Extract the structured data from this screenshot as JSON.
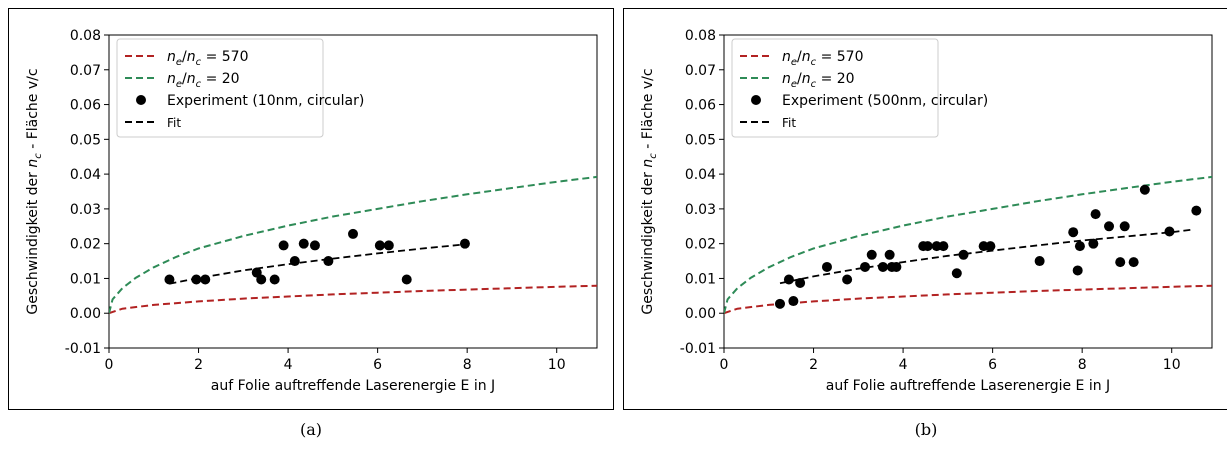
{
  "colors": {
    "red": "#b22222",
    "green": "#2e8b57",
    "black": "#000000"
  },
  "chart_data": [
    {
      "type": "line",
      "panel": "a",
      "caption": "(a)",
      "xlabel": "auf Folie auftreffende Laserenergie E in J",
      "ylabel": "Geschwindigkeit der n_c - Fläche v/c",
      "xlim": [
        0,
        10.9
      ],
      "ylim": [
        -0.01,
        0.08
      ],
      "xticks": [
        0,
        2,
        4,
        6,
        8,
        10
      ],
      "xtick_labels": [
        "0",
        "2",
        "4",
        "6",
        "8",
        "10"
      ],
      "yticks": [
        -0.01,
        0,
        0.01,
        0.02,
        0.03,
        0.04,
        0.05,
        0.06,
        0.07,
        0.08
      ],
      "ytick_labels": [
        "-0.01",
        "0.00",
        "0.01",
        "0.02",
        "0.03",
        "0.04",
        "0.05",
        "0.06",
        "0.07",
        "0.08"
      ],
      "grid": false,
      "legend_position": "top-left",
      "legend": [
        {
          "math": true,
          "text": "n_e/n_c = 570",
          "ratio": "570",
          "style": "dashed-red"
        },
        {
          "math": true,
          "text": "n_e/n_c = 20",
          "ratio": "20",
          "style": "dashed-green"
        },
        {
          "math": false,
          "text": "Experiment (10nm, circular)",
          "style": "marker"
        },
        {
          "math": false,
          "text": "Fit",
          "style": "dashed-black"
        }
      ],
      "series": [
        {
          "name": "n_e/n_c = 570",
          "style": "dashed-red",
          "x": [
            0,
            0.3,
            1,
            2,
            3,
            4,
            5,
            6,
            7,
            8,
            9,
            10,
            10.9
          ],
          "y": [
            0,
            0.0013,
            0.0024,
            0.0034,
            0.0042,
            0.0048,
            0.0054,
            0.0059,
            0.0064,
            0.0068,
            0.0072,
            0.0076,
            0.0079
          ]
        },
        {
          "name": "n_e/n_c = 20",
          "style": "dashed-green",
          "x": [
            0,
            0.08,
            0.3,
            0.6,
            1,
            1.5,
            2,
            3,
            4,
            5,
            6,
            7,
            8,
            9,
            10,
            10.9
          ],
          "y": [
            0,
            0.004,
            0.0072,
            0.0102,
            0.0132,
            0.0162,
            0.0186,
            0.0222,
            0.0252,
            0.0278,
            0.03,
            0.0322,
            0.0342,
            0.036,
            0.0378,
            0.0392
          ]
        },
        {
          "name": "Experiment (10nm, circular)",
          "style": "marker",
          "x": [
            1.35,
            1.95,
            2.15,
            3.3,
            3.4,
            3.7,
            3.9,
            4.15,
            4.35,
            4.6,
            4.9,
            5.45,
            6.05,
            6.25,
            6.65,
            7.95
          ],
          "y": [
            0.0097,
            0.0097,
            0.0097,
            0.0117,
            0.0097,
            0.0097,
            0.0195,
            0.015,
            0.02,
            0.0195,
            0.015,
            0.0228,
            0.0195,
            0.0195,
            0.0097,
            0.02
          ]
        },
        {
          "name": "Fit",
          "style": "dashed-black",
          "x": [
            1.35,
            2,
            3,
            4,
            5,
            6,
            7,
            7.95
          ],
          "y": [
            0.0085,
            0.0101,
            0.0123,
            0.0141,
            0.0157,
            0.0172,
            0.0186,
            0.0198
          ]
        }
      ]
    },
    {
      "type": "line",
      "panel": "b",
      "caption": "(b)",
      "xlabel": "auf Folie auftreffende Laserenergie E in J",
      "ylabel": "Geschwindigkeit der n_c - Fläche v/c",
      "xlim": [
        0,
        10.9
      ],
      "ylim": [
        -0.01,
        0.08
      ],
      "xticks": [
        0,
        2,
        4,
        6,
        8,
        10
      ],
      "xtick_labels": [
        "0",
        "2",
        "4",
        "6",
        "8",
        "10"
      ],
      "yticks": [
        -0.01,
        0,
        0.01,
        0.02,
        0.03,
        0.04,
        0.05,
        0.06,
        0.07,
        0.08
      ],
      "ytick_labels": [
        "-0.01",
        "0.00",
        "0.01",
        "0.02",
        "0.03",
        "0.04",
        "0.05",
        "0.06",
        "0.07",
        "0.08"
      ],
      "grid": false,
      "legend_position": "top-left",
      "legend": [
        {
          "math": true,
          "text": "n_e/n_c = 570",
          "ratio": "570",
          "style": "dashed-red"
        },
        {
          "math": true,
          "text": "n_e/n_c = 20",
          "ratio": "20",
          "style": "dashed-green"
        },
        {
          "math": false,
          "text": "Experiment (500nm, circular)",
          "style": "marker"
        },
        {
          "math": false,
          "text": "Fit",
          "style": "dashed-black"
        }
      ],
      "series": [
        {
          "name": "n_e/n_c = 570",
          "style": "dashed-red",
          "x": [
            0,
            0.3,
            1,
            2,
            3,
            4,
            5,
            6,
            7,
            8,
            9,
            10,
            10.9
          ],
          "y": [
            0,
            0.0013,
            0.0024,
            0.0034,
            0.0042,
            0.0048,
            0.0054,
            0.0059,
            0.0064,
            0.0068,
            0.0072,
            0.0076,
            0.0079
          ]
        },
        {
          "name": "n_e/n_c = 20",
          "style": "dashed-green",
          "x": [
            0,
            0.08,
            0.3,
            0.6,
            1,
            1.5,
            2,
            3,
            4,
            5,
            6,
            7,
            8,
            9,
            10,
            10.9
          ],
          "y": [
            0,
            0.004,
            0.0072,
            0.0102,
            0.0132,
            0.0162,
            0.0186,
            0.0222,
            0.0252,
            0.0278,
            0.03,
            0.0322,
            0.0342,
            0.036,
            0.0378,
            0.0392
          ]
        },
        {
          "name": "Experiment (500nm, circular)",
          "style": "marker",
          "x": [
            1.25,
            1.45,
            1.55,
            1.7,
            2.3,
            2.75,
            3.15,
            3.3,
            3.55,
            3.7,
            3.75,
            3.85,
            4.45,
            4.55,
            4.75,
            4.9,
            5.2,
            5.35,
            5.8,
            5.95,
            7.05,
            7.8,
            7.9,
            7.95,
            8.25,
            8.3,
            8.6,
            8.85,
            8.95,
            9.15,
            9.4,
            9.95,
            10.55
          ],
          "y": [
            0.0027,
            0.0097,
            0.0035,
            0.0087,
            0.0133,
            0.0097,
            0.0133,
            0.0168,
            0.0133,
            0.0168,
            0.0133,
            0.0133,
            0.0193,
            0.0193,
            0.0193,
            0.0193,
            0.0115,
            0.0168,
            0.0193,
            0.0193,
            0.015,
            0.0233,
            0.0123,
            0.0193,
            0.02,
            0.0285,
            0.025,
            0.0147,
            0.025,
            0.0147,
            0.0355,
            0.0235,
            0.0295
          ]
        },
        {
          "name": "Fit",
          "style": "dashed-black",
          "x": [
            1.25,
            2,
            3,
            4,
            5,
            6,
            7,
            8,
            9,
            10,
            10.5
          ],
          "y": [
            0.0086,
            0.0106,
            0.0128,
            0.0147,
            0.0165,
            0.018,
            0.0195,
            0.0209,
            0.0221,
            0.0233,
            0.0241
          ]
        }
      ]
    }
  ]
}
